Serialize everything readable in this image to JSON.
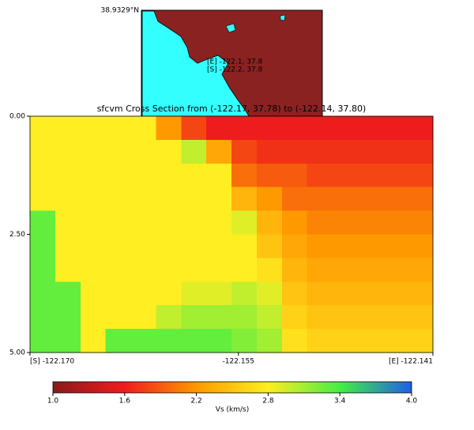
{
  "chart_data": {
    "type": "heatmap",
    "title": "sfcvm Cross Section from (-122.17, 37.78) to (-122.14, 37.80)",
    "map": {
      "lat_label": "38.9329°N",
      "end_label": "[E] -122.1, 37.8",
      "start_label": "[S] -122.2, 37.8"
    },
    "xlim": [
      -122.17,
      -122.141
    ],
    "xticks": [
      {
        "value": -122.17,
        "label": "[S] -122.170"
      },
      -122.155,
      {
        "value": -122.141,
        "label": "[E] -122.141"
      }
    ],
    "ylim": [
      0,
      5
    ],
    "yticks": [
      {
        "value": 0,
        "label": "0.00"
      },
      {
        "value": 2.5,
        "label": "2.50"
      },
      {
        "value": 5,
        "label": "5.00"
      }
    ],
    "values": [
      [
        2.8,
        2.8,
        2.8,
        2.8,
        2.8,
        2.2,
        1.8,
        1.6,
        1.6,
        1.6,
        1.6,
        1.6,
        1.6,
        1.6,
        1.6,
        1.6
      ],
      [
        2.8,
        2.8,
        2.8,
        2.8,
        2.8,
        2.8,
        3.0,
        2.3,
        1.8,
        1.7,
        1.7,
        1.7,
        1.7,
        1.7,
        1.7,
        1.7
      ],
      [
        2.8,
        2.8,
        2.8,
        2.8,
        2.8,
        2.8,
        2.8,
        2.8,
        2.0,
        1.9,
        1.9,
        1.8,
        1.8,
        1.8,
        1.8,
        1.8
      ],
      [
        2.8,
        2.8,
        2.8,
        2.8,
        2.8,
        2.8,
        2.8,
        2.8,
        2.4,
        2.2,
        2.0,
        2.0,
        2.0,
        2.0,
        2.0,
        2.0
      ],
      [
        3.3,
        2.8,
        2.8,
        2.8,
        2.8,
        2.8,
        2.8,
        2.8,
        2.9,
        2.4,
        2.2,
        2.1,
        2.1,
        2.1,
        2.1,
        2.1
      ],
      [
        3.3,
        2.8,
        2.8,
        2.8,
        2.8,
        2.8,
        2.8,
        2.8,
        2.8,
        2.5,
        2.3,
        2.2,
        2.2,
        2.2,
        2.2,
        2.2
      ],
      [
        3.3,
        2.8,
        2.8,
        2.8,
        2.8,
        2.8,
        2.8,
        2.8,
        2.8,
        2.7,
        2.4,
        2.3,
        2.3,
        2.3,
        2.3,
        2.3
      ],
      [
        3.3,
        3.3,
        2.8,
        2.8,
        2.8,
        2.8,
        2.9,
        2.9,
        3.0,
        2.9,
        2.5,
        2.4,
        2.4,
        2.4,
        2.4,
        2.4
      ],
      [
        3.3,
        3.3,
        2.8,
        2.8,
        2.8,
        3.0,
        3.1,
        3.1,
        3.1,
        3.0,
        2.6,
        2.5,
        2.5,
        2.5,
        2.5,
        2.5
      ],
      [
        3.3,
        3.3,
        2.8,
        3.3,
        3.3,
        3.3,
        3.3,
        3.3,
        3.2,
        3.1,
        2.7,
        2.6,
        2.6,
        2.6,
        2.6,
        2.6
      ]
    ],
    "colormap": [
      "#8b1a1a",
      "#ee1c1c",
      "#ff9900",
      "#ffee22",
      "#44ee44",
      "#1f5fe8"
    ],
    "clim": [
      1,
      4
    ],
    "cticks": [
      {
        "value": 1,
        "label": "1.0"
      },
      1.6,
      2.2,
      2.8,
      3.4,
      {
        "value": 4,
        "label": "4.0"
      }
    ],
    "colorbar_label": "Vs (km/s)"
  }
}
